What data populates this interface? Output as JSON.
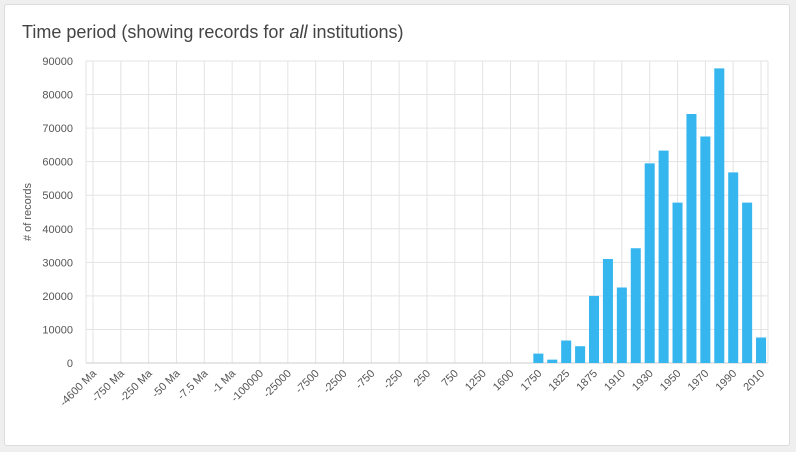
{
  "card": {
    "title_prefix": "Time period (showing records for ",
    "title_emphasis": "all",
    "title_suffix": " institutions)"
  },
  "colors": {
    "bar": "#35b6ee",
    "grid": "#e3e3e3",
    "axis_text": "#555555",
    "title": "#444444"
  },
  "chart_data": {
    "type": "bar",
    "title": "Time period (showing records for all institutions)",
    "xlabel": "",
    "ylabel": "# of records",
    "ylim": [
      0,
      90000
    ],
    "y_ticks": [
      0,
      10000,
      20000,
      30000,
      40000,
      50000,
      60000,
      70000,
      80000,
      90000
    ],
    "grid": true,
    "legend": "none",
    "categories": [
      "-4600 Ma",
      "",
      "-750 Ma",
      "",
      "-250 Ma",
      "",
      "-50 Ma",
      "",
      "-7.5 Ma",
      "",
      "-1 Ma",
      "",
      "-100000",
      "",
      "-25000",
      "",
      "-7500",
      "",
      "-2500",
      "",
      "-750",
      "",
      "-250",
      "",
      "250",
      "",
      "750",
      "",
      "1250",
      "",
      "1600",
      "",
      "1750",
      "",
      "1825",
      "",
      "1875",
      "",
      "1910",
      "",
      "1930",
      "",
      "1950",
      "",
      "1970",
      "",
      "1990",
      "",
      "2010"
    ],
    "values": [
      0,
      0,
      0,
      0,
      0,
      0,
      0,
      0,
      0,
      0,
      0,
      0,
      0,
      0,
      0,
      0,
      0,
      0,
      0,
      0,
      0,
      0,
      0,
      0,
      0,
      0,
      0,
      0,
      0,
      0,
      0,
      0,
      2800,
      1000,
      6700,
      5000,
      20000,
      31000,
      22500,
      34200,
      59500,
      63300,
      47800,
      74200,
      67500,
      87800,
      56800,
      47800,
      7600
    ]
  }
}
